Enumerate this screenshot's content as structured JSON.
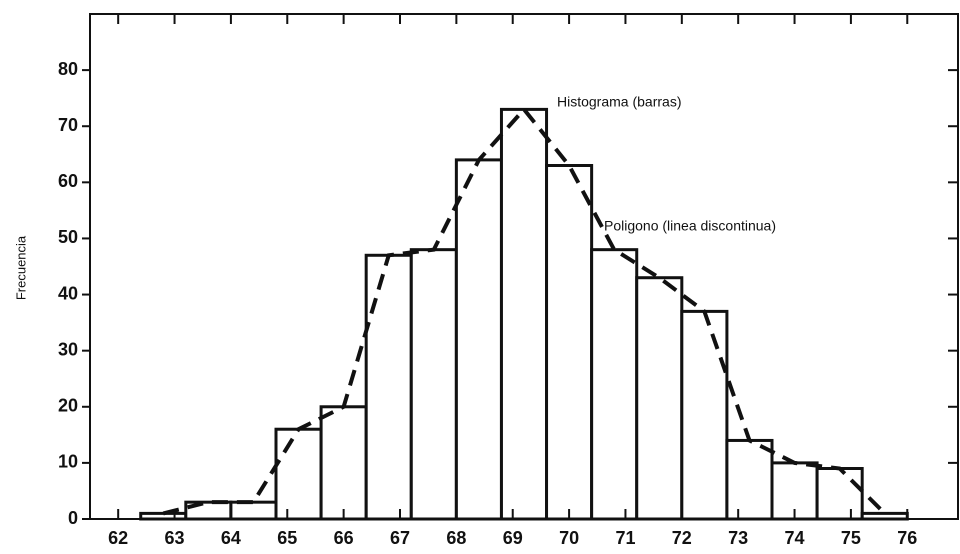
{
  "chart_data": {
    "type": "histogram",
    "y_label": "Frecuencia",
    "annotations": [
      "Histograma (barras)",
      "Poligono (linea discontinua)"
    ],
    "bins": [
      62.4,
      63.2,
      64.0,
      64.8,
      65.6,
      66.4,
      67.2,
      68.0,
      68.8,
      69.6,
      70.4,
      71.2,
      72.0,
      72.8,
      73.6,
      74.4,
      75.2,
      76.0
    ],
    "counts": [
      1,
      3,
      3,
      16,
      20,
      47,
      48,
      64,
      73,
      63,
      48,
      43,
      37,
      14,
      10,
      9,
      1
    ],
    "color": "#ffffff",
    "polygon": true,
    "xlim": [
      61.5,
      76.9
    ],
    "xticks": [
      62,
      63,
      64,
      65,
      66,
      67,
      68,
      69,
      70,
      71,
      72,
      73,
      74,
      75,
      76
    ],
    "ylim": [
      0,
      90
    ],
    "yticks": [
      0,
      10,
      20,
      30,
      40,
      50,
      60,
      70,
      80
    ]
  }
}
